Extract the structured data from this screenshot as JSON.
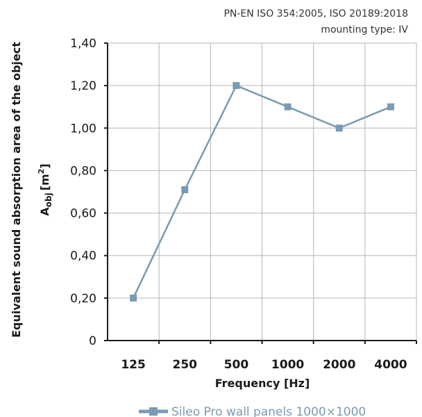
{
  "chart_data": {
    "type": "line",
    "annotations": [
      "PN-EN ISO 354:2005, ISO 20189:2018",
      "mounting type: IV"
    ],
    "categories": [
      "125",
      "250",
      "500",
      "1000",
      "2000",
      "4000"
    ],
    "series": [
      {
        "name": "Sileo Pro wall panels 1000×1000",
        "values": [
          0.2,
          0.71,
          1.2,
          1.1,
          1.0,
          1.1
        ]
      }
    ],
    "xlabel": "Frequency [Hz]",
    "ylabel_line1": "Equivalent sound absorption area of the object",
    "ylabel_line2_main": "A",
    "ylabel_line2_sub": "obj",
    "ylabel_line2_unit": "[m",
    "ylabel_line2_sup": "2",
    "ylabel_line2_end": "]",
    "ylim": [
      0,
      1.4
    ],
    "yticks": [
      "0",
      "0,20",
      "0,40",
      "0,60",
      "0,80",
      "1,00",
      "1,20",
      "1,40"
    ],
    "grid": true,
    "legend_position": "bottom",
    "colors": {
      "series": "#7a9bb2",
      "grid": "#b5b5b5",
      "axis": "#1a1a1a"
    }
  }
}
